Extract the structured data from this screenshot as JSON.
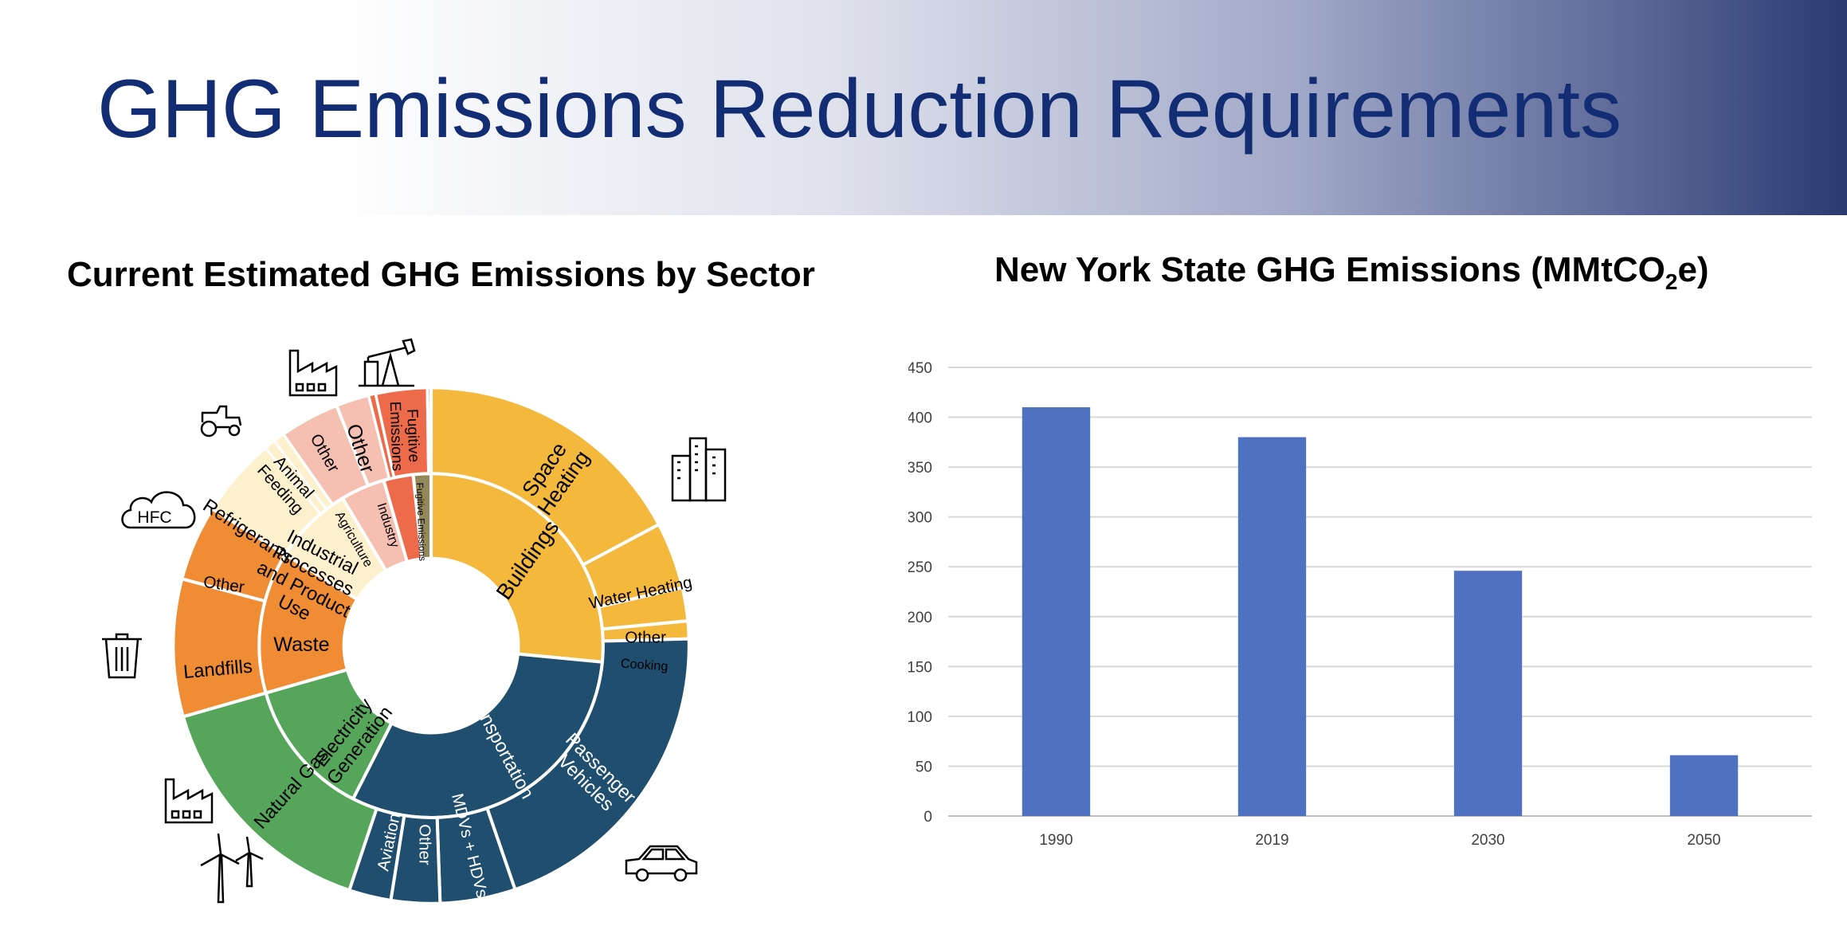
{
  "slide": {
    "title": "GHG Emissions Reduction Requirements"
  },
  "icons": [
    "factory-icon",
    "oil-pump-icon",
    "tractor-icon",
    "cloud-icon",
    "buildings-icon",
    "trash-can-icon",
    "factory-icon",
    "wind-turbine-icon",
    "car-icon"
  ],
  "cloud_icon_label": "HFC",
  "chart_data": [
    {
      "type": "sunburst",
      "title": "Current Estimated GHG Emissions by Sector",
      "inner": [
        {
          "name": "Buildings",
          "color": "#f4b83c",
          "text": "#000000"
        },
        {
          "name": "Transportation",
          "color": "#1f4e6e",
          "text": "#ffffff"
        },
        {
          "name": "Electricity Generation",
          "color": "#55a65a",
          "text": "#000000"
        },
        {
          "name": "Waste",
          "color": "#ef8c34",
          "text": "#000000"
        },
        {
          "name": "Industrial Processes and Product Use",
          "color": "#fdf1cd",
          "text": "#000000"
        },
        {
          "name": "Agriculture",
          "color": "#f5bfb2",
          "text": "#000000"
        },
        {
          "name": "Industry",
          "color": "#ed6b4b",
          "text": "#000000"
        },
        {
          "name": "Fugitive Emissions",
          "color": "#93885a",
          "text": "#000000"
        }
      ],
      "outer": [
        {
          "name": "Space Heating",
          "parent": "Buildings"
        },
        {
          "name": "Water Heating",
          "parent": "Buildings"
        },
        {
          "name": "Other",
          "parent": "Buildings"
        },
        {
          "name": "Cooking",
          "parent": "Buildings"
        },
        {
          "name": "Passenger Vehicles",
          "parent": "Transportation"
        },
        {
          "name": "MDVs + HDVs",
          "parent": "Transportation"
        },
        {
          "name": "Other",
          "parent": "Transportation"
        },
        {
          "name": "Aviation",
          "parent": "Transportation"
        },
        {
          "name": "Natural Gas",
          "parent": "Electricity Generation"
        },
        {
          "name": "Landfills",
          "parent": "Waste"
        },
        {
          "name": "Other",
          "parent": "Waste"
        },
        {
          "name": "Refrigerants",
          "parent": "Industrial Processes and Product Use"
        },
        {
          "name": "Animal Feeding",
          "parent": "Agriculture"
        },
        {
          "name": "Other",
          "parent": "Agriculture"
        },
        {
          "name": "Other",
          "parent": "Industry"
        },
        {
          "name": "Fugitive Emissions",
          "parent": "Fugitive Emissions"
        }
      ]
    },
    {
      "type": "bar",
      "title": "New York State GHG Emissions (MMtCO",
      "title_sub": "2",
      "title_end": "e)",
      "categories": [
        "1990",
        "2019",
        "2030",
        "2050"
      ],
      "values": [
        410,
        380,
        246,
        61
      ],
      "ylim": [
        0,
        450
      ],
      "yticks": [
        "0",
        "50",
        "100",
        "150",
        "200",
        "250",
        "300",
        "350",
        "400",
        "450"
      ],
      "bar_color": "#4e72bf",
      "grid": true
    }
  ]
}
